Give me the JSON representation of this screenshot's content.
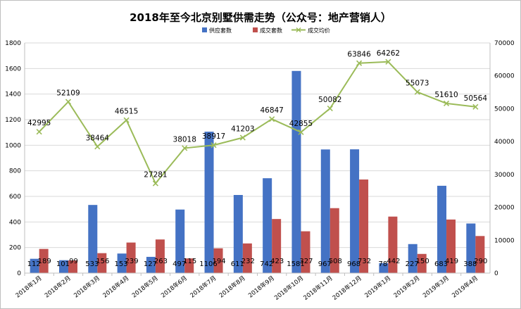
{
  "chart_data": {
    "type": "bar",
    "title": "2018年至今北京别墅供需走势（公众号：地产营销人）",
    "categories": [
      "2018年1月",
      "2018年2月",
      "2018年3月",
      "2018年4月",
      "2018年5月",
      "2018年6月",
      "2018年7月",
      "2018年8月",
      "2018年9月",
      "2018年10月",
      "2018年11月",
      "2018年12月",
      "2019年1月",
      "2019年2月",
      "2019年3月",
      "2019年4月"
    ],
    "series": [
      {
        "name": "供应套数",
        "type": "bar",
        "axis": "left",
        "color": "#4472c4",
        "values": [
          112,
          101,
          533,
          153,
          127,
          497,
          1106,
          611,
          742,
          1581,
          967,
          968,
          78,
          227,
          683,
          388
        ]
      },
      {
        "name": "成交套数",
        "type": "bar",
        "axis": "left",
        "color": "#c0504d",
        "values": [
          189,
          99,
          156,
          239,
          263,
          115,
          194,
          232,
          423,
          327,
          508,
          732,
          442,
          150,
          419,
          290
        ]
      },
      {
        "name": "成交均价",
        "type": "line",
        "axis": "right",
        "color": "#9bbb59",
        "values": [
          42995,
          52109,
          38464,
          46515,
          27281,
          38018,
          38917,
          41203,
          46847,
          42855,
          50082,
          63846,
          64262,
          55073,
          51610,
          50564
        ]
      }
    ],
    "y_left": {
      "range": [
        0,
        1800
      ],
      "step": 200
    },
    "y_right": {
      "range": [
        0,
        70000
      ],
      "step": 10000
    },
    "legend_position": "top",
    "grid": true
  }
}
